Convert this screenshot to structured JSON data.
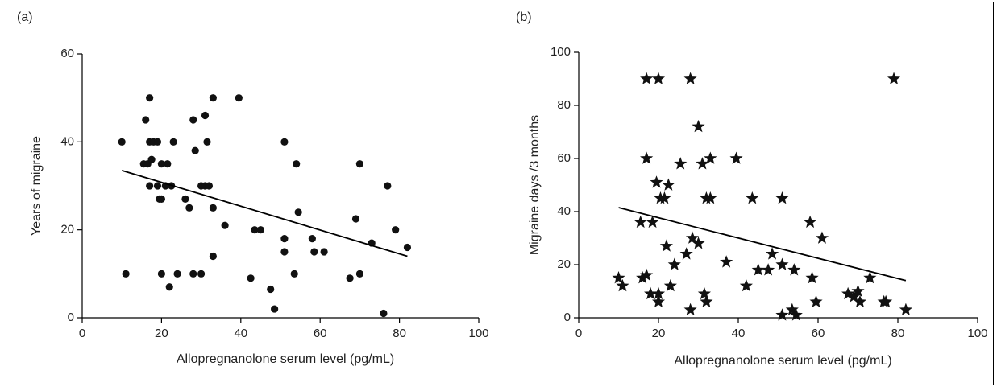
{
  "chart_data": [
    {
      "panel_label": "(a)",
      "type": "scatter",
      "marker": "circle",
      "xlabel": "Allopregnanolone serum level (pg/mL)",
      "ylabel": "Years of migraine",
      "xlim": [
        0,
        100
      ],
      "ylim": [
        0,
        60
      ],
      "xticks": [
        0,
        20,
        40,
        60,
        80,
        100
      ],
      "yticks": [
        0,
        20,
        40,
        60
      ],
      "points": [
        [
          10,
          40
        ],
        [
          11,
          10
        ],
        [
          15.5,
          35
        ],
        [
          16,
          45
        ],
        [
          16.5,
          35
        ],
        [
          17,
          50
        ],
        [
          17,
          40
        ],
        [
          17,
          30
        ],
        [
          17.5,
          36
        ],
        [
          18,
          40
        ],
        [
          19,
          40
        ],
        [
          19,
          30
        ],
        [
          19.5,
          27
        ],
        [
          20,
          27
        ],
        [
          20,
          35
        ],
        [
          20,
          10
        ],
        [
          21,
          30
        ],
        [
          21.5,
          35
        ],
        [
          22,
          7
        ],
        [
          22.5,
          30
        ],
        [
          23,
          40
        ],
        [
          24,
          10
        ],
        [
          26,
          27
        ],
        [
          27,
          25
        ],
        [
          28,
          45
        ],
        [
          28,
          10
        ],
        [
          28.5,
          38
        ],
        [
          30,
          30
        ],
        [
          30,
          10
        ],
        [
          31,
          46
        ],
        [
          31,
          30
        ],
        [
          31.5,
          40
        ],
        [
          32,
          30
        ],
        [
          33,
          50
        ],
        [
          33,
          25
        ],
        [
          33,
          14
        ],
        [
          36,
          21
        ],
        [
          39.5,
          50
        ],
        [
          42.5,
          9
        ],
        [
          43.5,
          20
        ],
        [
          45,
          20
        ],
        [
          47.5,
          6.5
        ],
        [
          48.5,
          2
        ],
        [
          51,
          40
        ],
        [
          51,
          18
        ],
        [
          51,
          15
        ],
        [
          53.5,
          10
        ],
        [
          54,
          35
        ],
        [
          54.5,
          24
        ],
        [
          58,
          18
        ],
        [
          58.5,
          15
        ],
        [
          61,
          15
        ],
        [
          67.5,
          9
        ],
        [
          69,
          22.5
        ],
        [
          70,
          35
        ],
        [
          70,
          10
        ],
        [
          73,
          17
        ],
        [
          76,
          1
        ],
        [
          77,
          30
        ],
        [
          79,
          20
        ],
        [
          82,
          16
        ]
      ],
      "trendline": {
        "x": [
          10,
          82
        ],
        "y": [
          33.5,
          14
        ]
      }
    },
    {
      "panel_label": "(b)",
      "type": "scatter",
      "marker": "star",
      "xlabel": "Allopregnanolone serum level (pg/mL)",
      "ylabel": "Migraine days /3 months",
      "xlim": [
        0,
        100
      ],
      "ylim": [
        0,
        100
      ],
      "xticks": [
        0,
        20,
        40,
        60,
        80,
        100
      ],
      "yticks": [
        0,
        20,
        40,
        60,
        80,
        100
      ],
      "points": [
        [
          10,
          15
        ],
        [
          11,
          12
        ],
        [
          15.5,
          36
        ],
        [
          16,
          15
        ],
        [
          17,
          90
        ],
        [
          17,
          60
        ],
        [
          17,
          16
        ],
        [
          18,
          9
        ],
        [
          18.5,
          36
        ],
        [
          19.5,
          51
        ],
        [
          20,
          90
        ],
        [
          20,
          9
        ],
        [
          20,
          6
        ],
        [
          20.5,
          45
        ],
        [
          21.5,
          45
        ],
        [
          22,
          27
        ],
        [
          22.5,
          50
        ],
        [
          23,
          12
        ],
        [
          24,
          20
        ],
        [
          25.5,
          58
        ],
        [
          27,
          24
        ],
        [
          28,
          90
        ],
        [
          28,
          3
        ],
        [
          28.5,
          30
        ],
        [
          30,
          72
        ],
        [
          30,
          28
        ],
        [
          31,
          58
        ],
        [
          31.5,
          9
        ],
        [
          32,
          45
        ],
        [
          32,
          6
        ],
        [
          33,
          60
        ],
        [
          33,
          45
        ],
        [
          37,
          21
        ],
        [
          39.5,
          60
        ],
        [
          42,
          12
        ],
        [
          43.5,
          45
        ],
        [
          45,
          18
        ],
        [
          47.5,
          18
        ],
        [
          48.5,
          24
        ],
        [
          51,
          45
        ],
        [
          51,
          20
        ],
        [
          51,
          1
        ],
        [
          53.5,
          3
        ],
        [
          54,
          18
        ],
        [
          54.5,
          1
        ],
        [
          58,
          36
        ],
        [
          58.5,
          15
        ],
        [
          59.5,
          6
        ],
        [
          61,
          30
        ],
        [
          67.5,
          9
        ],
        [
          69,
          8
        ],
        [
          70,
          10
        ],
        [
          70.5,
          6
        ],
        [
          73,
          15
        ],
        [
          76.5,
          6
        ],
        [
          77,
          6
        ],
        [
          79,
          90
        ],
        [
          82,
          3
        ]
      ],
      "trendline": {
        "x": [
          10,
          82
        ],
        "y": [
          41.5,
          14
        ]
      }
    }
  ]
}
